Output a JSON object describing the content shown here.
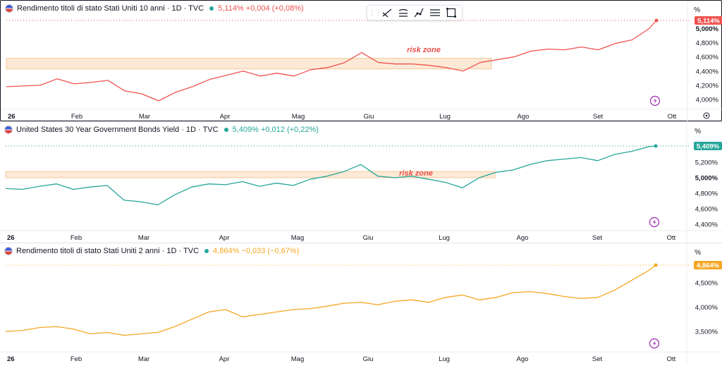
{
  "panes": [
    {
      "title": "Rendimento titoli di stato Stati Uniti 10 anni · 1D · TVC",
      "last": "5,114%",
      "change": "+0,004",
      "change_pct": "(+0,08%)",
      "color": "#ef5350",
      "unit": "%",
      "price_tag": "5,114%",
      "annotation": "risk zone",
      "lightning_icon": "lightning-icon"
    },
    {
      "title": "United States 30 Year Government Bonds Yield · 1D · TVC",
      "last": "5,409%",
      "change": "+0,012",
      "change_pct": "(+0,22%)",
      "color": "#26a69a",
      "unit": "%",
      "price_tag": "5,409%",
      "annotation": "risk zone",
      "lightning_icon": "lightning-icon"
    },
    {
      "title": "Rendimento titoli di stato Stati Uniti 2 anni · 1D · TVC",
      "last": "4,864%",
      "change": "−0,033",
      "change_pct": "(−0,67%)",
      "color": "#f5a623",
      "unit": "%",
      "price_tag": "4,864%",
      "annotation": "",
      "lightning_icon": "lightning-icon"
    }
  ],
  "toolbar": {
    "icons": [
      "drag-handle-icon",
      "trendline-tool-icon",
      "parallel-channel-icon",
      "path-tool-icon",
      "horizontal-lines-icon",
      "rectangle-tool-icon"
    ]
  },
  "chart_data": [
    {
      "type": "line",
      "title": "Rendimento titoli di stato Stati Uniti 10 anni · 1D · TVC",
      "x_tick_labels": [
        "26",
        "Feb",
        "Mar",
        "Apr",
        "Mag",
        "Giu",
        "Lug",
        "Ago",
        "Set",
        "Ott"
      ],
      "y_tick_labels": [
        "5,000%",
        "4,800%",
        "4,600%",
        "4,400%",
        "4,200%",
        "4,000%"
      ],
      "ylim": [
        3.85,
        5.25
      ],
      "shaded_band": {
        "label": "risk zone",
        "y_range": [
          4.43,
          4.58
        ],
        "x_range": [
          "26",
          "Lug"
        ]
      },
      "last_value": 5.114,
      "series": [
        {
          "color": "#ef5350",
          "x": [
            "2024-01-02",
            "2024-01-09",
            "2024-01-16",
            "2024-01-23",
            "2024-01-30",
            "2024-02-06",
            "2024-02-13",
            "2024-02-20",
            "2024-02-27",
            "2024-03-05",
            "2024-03-12",
            "2024-03-19",
            "2024-03-26",
            "2024-04-02",
            "2024-04-09",
            "2024-04-16",
            "2024-04-23",
            "2024-04-30",
            "2024-05-07",
            "2024-05-14",
            "2024-05-21",
            "2024-05-28",
            "2024-06-04",
            "2024-06-11",
            "2024-06-18",
            "2024-06-25",
            "2024-07-02",
            "2024-07-09",
            "2024-07-16",
            "2024-07-23",
            "2024-07-30",
            "2024-08-06",
            "2024-08-13",
            "2024-08-20",
            "2024-08-27",
            "2024-09-03",
            "2024-09-10",
            "2024-09-17",
            "2024-09-24",
            "2024-09-27"
          ],
          "y": [
            4.18,
            4.19,
            4.2,
            4.29,
            4.22,
            4.24,
            4.27,
            4.12,
            4.08,
            3.98,
            4.1,
            4.18,
            4.28,
            4.34,
            4.4,
            4.33,
            4.37,
            4.33,
            4.42,
            4.45,
            4.52,
            4.66,
            4.52,
            4.5,
            4.5,
            4.48,
            4.45,
            4.4,
            4.52,
            4.56,
            4.6,
            4.68,
            4.71,
            4.7,
            4.74,
            4.7,
            4.79,
            4.84,
            5.0,
            5.114
          ]
        }
      ]
    },
    {
      "type": "line",
      "title": "United States 30 Year Government Bonds Yield · 1D · TVC",
      "x_tick_labels": [
        "26",
        "Feb",
        "Mar",
        "Apr",
        "Mag",
        "Giu",
        "Lug",
        "Ago",
        "Set",
        "Ott"
      ],
      "y_tick_labels": [
        "5,200%",
        "5,000%",
        "4,800%",
        "4,600%",
        "4,400%"
      ],
      "ylim": [
        4.3,
        5.55
      ],
      "shaded_band": {
        "label": "risk zone",
        "y_range": [
          5.0,
          5.08
        ],
        "x_range": [
          "26",
          "Lug"
        ]
      },
      "last_value": 5.409,
      "series": [
        {
          "color": "#26a69a",
          "x": [
            "2024-01-02",
            "2024-01-09",
            "2024-01-16",
            "2024-01-23",
            "2024-01-30",
            "2024-02-06",
            "2024-02-13",
            "2024-02-20",
            "2024-02-27",
            "2024-03-05",
            "2024-03-12",
            "2024-03-19",
            "2024-03-26",
            "2024-04-02",
            "2024-04-09",
            "2024-04-16",
            "2024-04-23",
            "2024-04-30",
            "2024-05-07",
            "2024-05-14",
            "2024-05-21",
            "2024-05-28",
            "2024-06-04",
            "2024-06-11",
            "2024-06-18",
            "2024-06-25",
            "2024-07-02",
            "2024-07-09",
            "2024-07-16",
            "2024-07-23",
            "2024-07-30",
            "2024-08-06",
            "2024-08-13",
            "2024-08-20",
            "2024-08-27",
            "2024-09-03",
            "2024-09-10",
            "2024-09-17",
            "2024-09-24",
            "2024-09-27"
          ],
          "y": [
            4.86,
            4.85,
            4.89,
            4.92,
            4.85,
            4.88,
            4.9,
            4.71,
            4.69,
            4.65,
            4.78,
            4.88,
            4.92,
            4.91,
            4.95,
            4.89,
            4.93,
            4.9,
            4.98,
            5.02,
            5.08,
            5.17,
            5.02,
            5.0,
            5.02,
            4.98,
            4.94,
            4.87,
            5.0,
            5.07,
            5.1,
            5.17,
            5.22,
            5.24,
            5.26,
            5.22,
            5.3,
            5.34,
            5.4,
            5.409
          ]
        }
      ]
    },
    {
      "type": "line",
      "title": "Rendimento titoli di stato Stati Uniti 2 anni · 1D · TVC",
      "x_tick_labels": [
        "26",
        "Feb",
        "Mar",
        "Apr",
        "Mag",
        "Giu",
        "Lug",
        "Ago",
        "Set",
        "Ott"
      ],
      "y_tick_labels": [
        "4,500%",
        "4,000%",
        "3,500%"
      ],
      "ylim": [
        3.3,
        5.0
      ],
      "last_value": 4.864,
      "series": [
        {
          "color": "#f5a623",
          "x": [
            "2024-01-02",
            "2024-01-09",
            "2024-01-16",
            "2024-01-23",
            "2024-01-30",
            "2024-02-06",
            "2024-02-13",
            "2024-02-20",
            "2024-02-27",
            "2024-03-05",
            "2024-03-12",
            "2024-03-19",
            "2024-03-26",
            "2024-04-02",
            "2024-04-09",
            "2024-04-16",
            "2024-04-23",
            "2024-04-30",
            "2024-05-07",
            "2024-05-14",
            "2024-05-21",
            "2024-05-28",
            "2024-06-04",
            "2024-06-11",
            "2024-06-18",
            "2024-06-25",
            "2024-07-02",
            "2024-07-09",
            "2024-07-16",
            "2024-07-23",
            "2024-07-30",
            "2024-08-06",
            "2024-08-13",
            "2024-08-20",
            "2024-08-27",
            "2024-09-03",
            "2024-09-10",
            "2024-09-17",
            "2024-09-24",
            "2024-09-27"
          ],
          "y": [
            3.5,
            3.52,
            3.58,
            3.6,
            3.55,
            3.45,
            3.48,
            3.42,
            3.45,
            3.48,
            3.6,
            3.75,
            3.9,
            3.95,
            3.8,
            3.85,
            3.9,
            3.95,
            3.97,
            4.02,
            4.08,
            4.1,
            4.05,
            4.12,
            4.15,
            4.1,
            4.2,
            4.25,
            4.15,
            4.2,
            4.3,
            4.32,
            4.28,
            4.22,
            4.18,
            4.2,
            4.35,
            4.55,
            4.75,
            4.864
          ]
        }
      ]
    }
  ]
}
